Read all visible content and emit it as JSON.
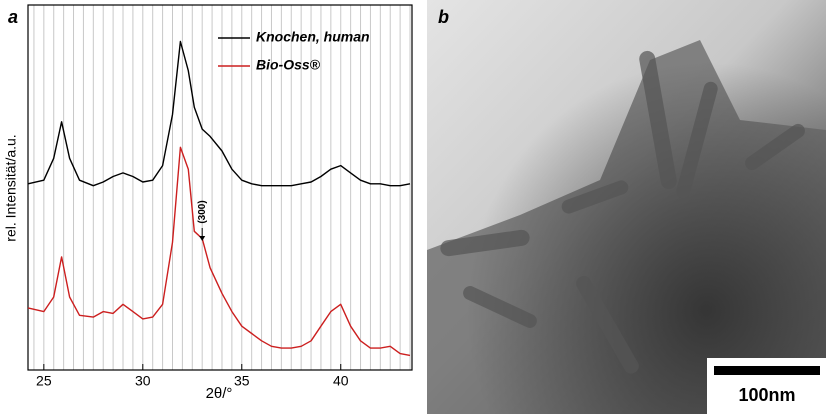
{
  "chart_data": {
    "type": "line",
    "panel_label": "a",
    "x_label": "2θ/°",
    "y_label": "rel. Intensität/a.u.",
    "annotation": "(300)",
    "annotation_x": 33,
    "x": [
      24.2,
      25,
      25.5,
      25.9,
      26.3,
      26.8,
      27.5,
      28,
      28.5,
      29,
      29.5,
      30,
      30.5,
      31,
      31.5,
      31.9,
      32.3,
      32.6,
      33,
      33.4,
      34,
      34.5,
      35,
      35.5,
      36,
      36.5,
      37,
      37.5,
      38,
      38.5,
      39,
      39.5,
      40,
      40.5,
      41,
      41.5,
      42,
      42.5,
      43,
      43.5
    ],
    "series": [
      {
        "name": "Knochen, human",
        "color": "#000000",
        "values": [
          51,
          52,
          58,
          68,
          58,
          52,
          50.5,
          51.5,
          53,
          54,
          53,
          51.5,
          52,
          56,
          70,
          90,
          82,
          72,
          66,
          64,
          60,
          55,
          52,
          51,
          50.5,
          50.5,
          50.5,
          50.5,
          51,
          51.5,
          53,
          55,
          56,
          54,
          52,
          51,
          51,
          50.5,
          50.5,
          51
        ]
      },
      {
        "name": "Bio-Oss®",
        "color": "#cc1f1f",
        "values": [
          17,
          16,
          20,
          31,
          20,
          15,
          14.5,
          16,
          15.5,
          18,
          16,
          14,
          14.5,
          18,
          35,
          61,
          55,
          38,
          36,
          28,
          21,
          16,
          12,
          10,
          8,
          6.5,
          6,
          6,
          6.5,
          8,
          12,
          16,
          18,
          12,
          8,
          6,
          6,
          6.5,
          4.5,
          4
        ]
      }
    ],
    "xlim": [
      24.2,
      43.6
    ],
    "xticks": [
      25,
      30,
      35,
      40
    ],
    "x_minor_step": 0.5,
    "ylim": [
      0,
      100
    ],
    "legend": "upper right",
    "grid": true
  },
  "image_panel": {
    "label": "b",
    "scale_bar": "100nm"
  }
}
